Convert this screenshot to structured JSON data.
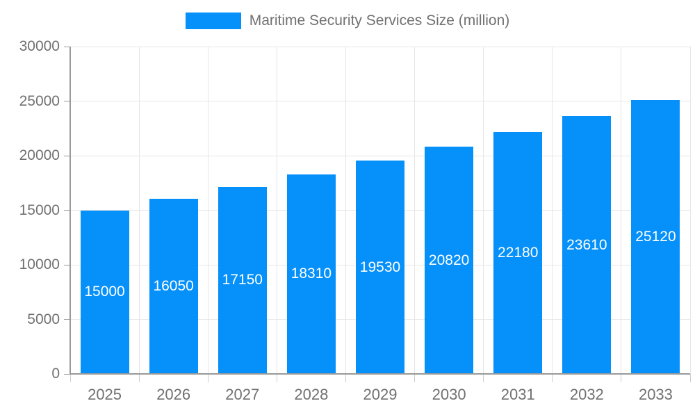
{
  "chart_data": {
    "type": "bar",
    "title": "Maritime Security Services Size (million)",
    "categories": [
      "2025",
      "2026",
      "2027",
      "2028",
      "2029",
      "2030",
      "2031",
      "2032",
      "2033"
    ],
    "values": [
      15000,
      16050,
      17150,
      18310,
      19530,
      20820,
      22180,
      23610,
      25120
    ],
    "xlabel": "",
    "ylabel": "",
    "ylim": [
      0,
      30000
    ],
    "yticks": [
      0,
      5000,
      10000,
      15000,
      20000,
      25000,
      30000
    ],
    "grid": true,
    "legend_position": "top",
    "colors": {
      "bar": "#0590fa",
      "bar_label_text": "#ffffff",
      "axis_text": "#717171",
      "grid_line": "#e6e6e6",
      "axis_line": "#999999",
      "x_tick": "#cccccc"
    }
  }
}
